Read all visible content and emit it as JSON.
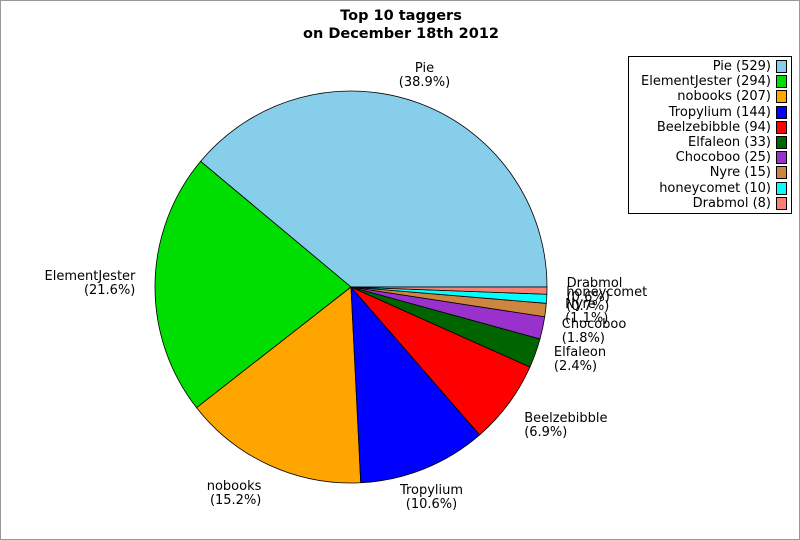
{
  "title": {
    "line1": "Top 10 taggers",
    "line2": "on December 18th 2012"
  },
  "chart_data": {
    "type": "pie",
    "title": "Top 10 taggers on December 18th 2012",
    "total": 1359,
    "start_angle_deg": 0,
    "direction": "counterclockwise",
    "legend_position": "upper right",
    "grid": false,
    "slices": [
      {
        "name": "Pie",
        "count": 529,
        "pct_label": "38.9",
        "color": "#87CEEB"
      },
      {
        "name": "ElementJester",
        "count": 294,
        "pct_label": "21.6",
        "color": "#00DD00"
      },
      {
        "name": "nobooks",
        "count": 207,
        "pct_label": "15.2",
        "color": "#FFA500"
      },
      {
        "name": "Tropylium",
        "count": 144,
        "pct_label": "10.6",
        "color": "#0000FF"
      },
      {
        "name": "Beelzebibble",
        "count": 94,
        "pct_label": "6.9",
        "color": "#FF0000"
      },
      {
        "name": "Elfaleon",
        "count": 33,
        "pct_label": "2.4",
        "color": "#006400"
      },
      {
        "name": "Chocoboo",
        "count": 25,
        "pct_label": "1.8",
        "color": "#9932CC"
      },
      {
        "name": "Nyre",
        "count": 15,
        "pct_label": "1.1",
        "color": "#CD853F"
      },
      {
        "name": "honeycomet",
        "count": 10,
        "pct_label": "0.7",
        "color": "#00FFFF"
      },
      {
        "name": "Drabmol",
        "count": 8,
        "pct_label": "0.6",
        "color": "#FA8072"
      }
    ]
  }
}
